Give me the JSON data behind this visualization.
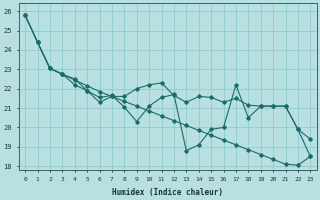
{
  "xlabel": "Humidex (Indice chaleur)",
  "xlim": [
    -0.5,
    23.5
  ],
  "ylim": [
    17.8,
    26.4
  ],
  "yticks": [
    18,
    19,
    20,
    21,
    22,
    23,
    24,
    25,
    26
  ],
  "xticks": [
    0,
    1,
    2,
    3,
    4,
    5,
    6,
    7,
    8,
    9,
    10,
    11,
    12,
    13,
    14,
    15,
    16,
    17,
    18,
    19,
    20,
    21,
    22,
    23
  ],
  "background_color": "#b8e0e0",
  "grid_color": "#88c8c8",
  "line_color": "#1a6b6b",
  "line1_x": [
    0,
    1,
    2,
    3,
    4,
    5,
    6,
    7,
    8,
    9,
    10,
    11,
    12,
    13,
    14,
    15,
    16,
    17,
    18,
    19,
    20,
    21,
    22,
    23
  ],
  "line1_y": [
    25.8,
    24.4,
    23.05,
    22.75,
    22.45,
    22.15,
    21.85,
    21.6,
    21.35,
    21.1,
    20.85,
    20.6,
    20.35,
    20.1,
    19.85,
    19.6,
    19.35,
    19.1,
    18.85,
    18.6,
    18.35,
    18.1,
    18.05,
    18.5
  ],
  "line2_x": [
    0,
    1,
    2,
    3,
    4,
    5,
    6,
    7,
    8,
    9,
    10,
    11,
    12,
    13,
    14,
    15,
    16,
    17,
    18,
    19,
    20,
    21,
    22,
    23
  ],
  "line2_y": [
    25.8,
    24.4,
    23.05,
    22.75,
    22.2,
    21.9,
    21.55,
    21.65,
    21.05,
    20.3,
    21.1,
    21.55,
    21.7,
    18.8,
    19.1,
    19.9,
    20.0,
    22.2,
    20.5,
    21.1,
    21.1,
    21.1,
    19.9,
    19.4
  ],
  "line3_x": [
    0,
    1,
    2,
    3,
    4,
    5,
    6,
    7,
    8,
    9,
    10,
    11,
    12,
    13,
    14,
    15,
    16,
    17,
    18,
    19,
    20,
    21,
    22,
    23
  ],
  "line3_y": [
    25.8,
    24.4,
    23.05,
    22.75,
    22.5,
    21.9,
    21.3,
    21.6,
    21.6,
    22.0,
    22.2,
    22.3,
    21.65,
    21.3,
    21.6,
    21.55,
    21.3,
    21.5,
    21.15,
    21.1,
    21.1,
    21.1,
    19.9,
    18.5
  ]
}
